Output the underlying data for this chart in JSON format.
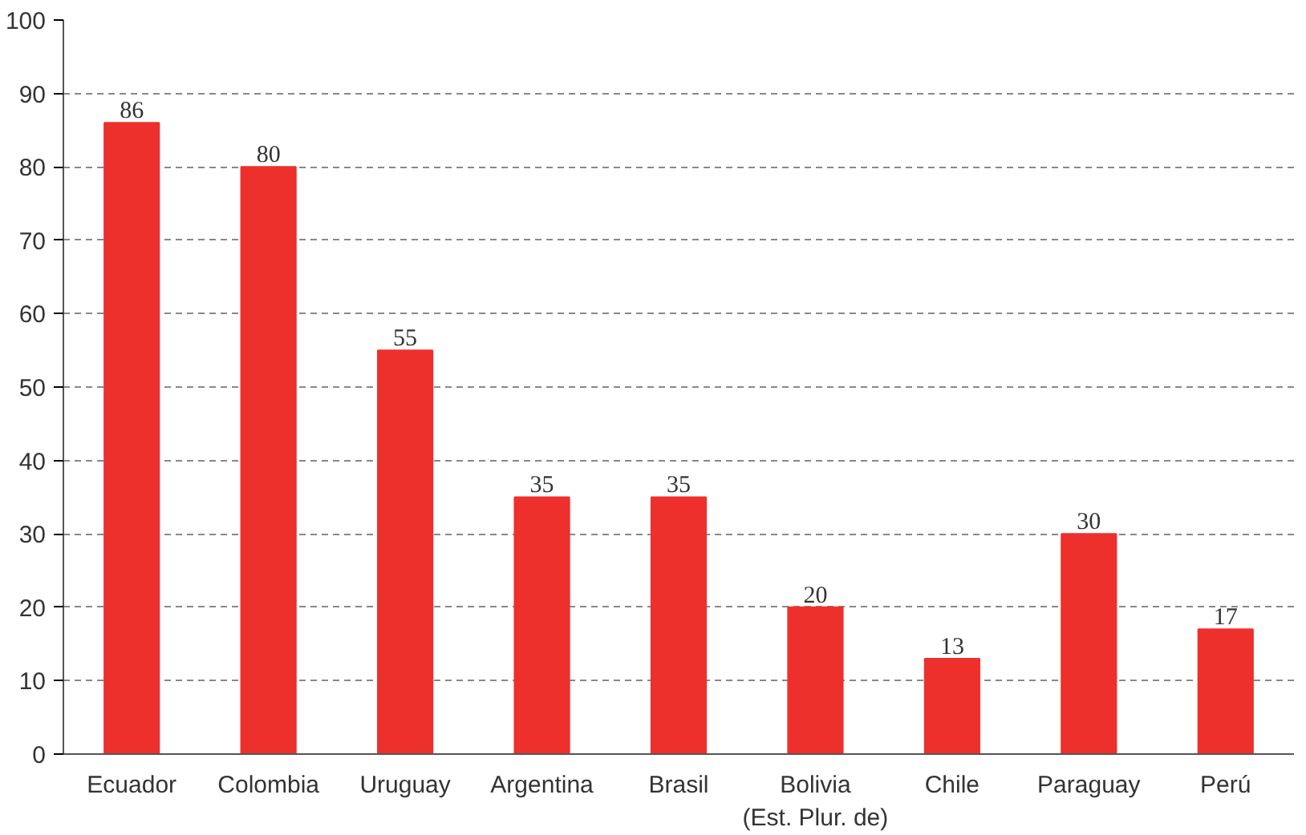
{
  "chart_data": {
    "type": "bar",
    "categories": [
      "Ecuador",
      "Colombia",
      "Uruguay",
      "Argentina",
      "Brasil",
      "Bolivia\n(Est. Plur. de)",
      "Chile",
      "Paraguay",
      "Perú"
    ],
    "values": [
      86,
      80,
      55,
      35,
      35,
      20,
      13,
      30,
      17
    ],
    "color": "#ee302d",
    "ylim": [
      0,
      100
    ],
    "yticks": [
      0,
      10,
      20,
      30,
      40,
      50,
      60,
      70,
      80,
      90,
      100
    ],
    "grid": "y",
    "data_labels": true
  }
}
